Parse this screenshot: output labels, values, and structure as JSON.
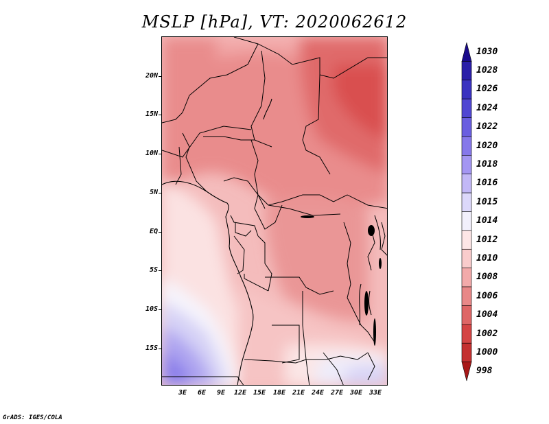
{
  "title": "MSLP [hPa], VT: 2020062612",
  "credit": "GrADS: IGES/COLA",
  "y_axis_labels": [
    "20N",
    "15N",
    "10N",
    "5N",
    "EQ",
    "5S",
    "10S",
    "15S"
  ],
  "x_axis_labels": [
    "3E",
    "6E",
    "9E",
    "12E",
    "15E",
    "18E",
    "21E",
    "24E",
    "27E",
    "30E",
    "33E"
  ],
  "colorbar": {
    "labels": [
      "1030",
      "1028",
      "1026",
      "1024",
      "1022",
      "1020",
      "1018",
      "1016",
      "1015",
      "1014",
      "1012",
      "1010",
      "1008",
      "1006",
      "1004",
      "1002",
      "1000",
      "998"
    ],
    "colors": [
      "#1a0a8c",
      "#2a1ea8",
      "#3a32c0",
      "#5046d2",
      "#6a5ee0",
      "#8678ea",
      "#a496f2",
      "#c2b8f6",
      "#dcd8fa",
      "#f2f0fc",
      "#fde6e6",
      "#f9cccc",
      "#f2aaaa",
      "#e88888",
      "#de6666",
      "#d44444",
      "#c43030",
      "#a81818"
    ]
  },
  "map": {
    "lon_range": [
      0,
      35
    ],
    "lat_range": [
      -20,
      25
    ],
    "pressure_fields": [
      {
        "region": "northeast-sahara",
        "hPa": 1004
      },
      {
        "region": "sahel-central",
        "hPa": 1008
      },
      {
        "region": "congo-basin",
        "hPa": 1010
      },
      {
        "region": "gulf-of-guinea",
        "hPa": 1014
      },
      {
        "region": "southeast-atlantic",
        "hPa": 1020
      }
    ]
  }
}
